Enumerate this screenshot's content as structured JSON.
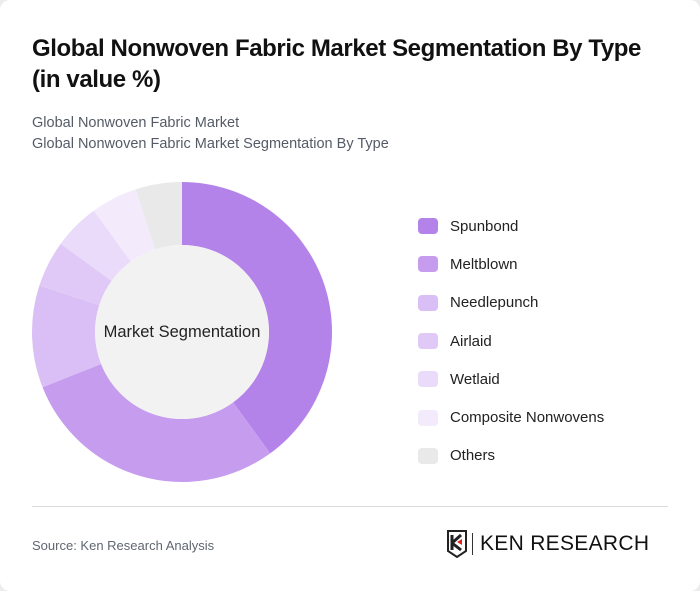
{
  "header": {
    "title": "Global Nonwoven Fabric Market Segmentation By Type (in value %)",
    "subtitle_line1": "Global Nonwoven Fabric Market",
    "subtitle_line2": "Global Nonwoven Fabric Market Segmentation By Type"
  },
  "chart": {
    "center_label": "Market Segmentation"
  },
  "chart_data": {
    "type": "pie",
    "variant": "donut",
    "title": "Global Nonwoven Fabric Market Segmentation By Type (in value %)",
    "center_label": "Market Segmentation",
    "categories": [
      "Spunbond",
      "Meltblown",
      "Needlepunch",
      "Airlaid",
      "Wetlaid",
      "Composite Nonwovens",
      "Others"
    ],
    "values": [
      40,
      29,
      11,
      5,
      5,
      5,
      5
    ],
    "colors": [
      "#b383ea",
      "#c69cee",
      "#d9bff5",
      "#e0c9f6",
      "#e9dbf9",
      "#f3ebfc",
      "#e9e9e9"
    ],
    "legend_position": "right",
    "start_angle_deg": 0,
    "direction": "clockwise"
  },
  "legend": {
    "items": [
      {
        "label": "Spunbond",
        "color": "#b383ea"
      },
      {
        "label": "Meltblown",
        "color": "#c69cee"
      },
      {
        "label": "Needlepunch",
        "color": "#d9bff5"
      },
      {
        "label": "Airlaid",
        "color": "#e0c9f6"
      },
      {
        "label": "Wetlaid",
        "color": "#e9dbf9"
      },
      {
        "label": "Composite Nonwovens",
        "color": "#f3ebfc"
      },
      {
        "label": "Others",
        "color": "#e9e9e9"
      }
    ]
  },
  "footer": {
    "source": "Source: Ken Research Analysis",
    "logo_text": "KEN RESEARCH"
  }
}
